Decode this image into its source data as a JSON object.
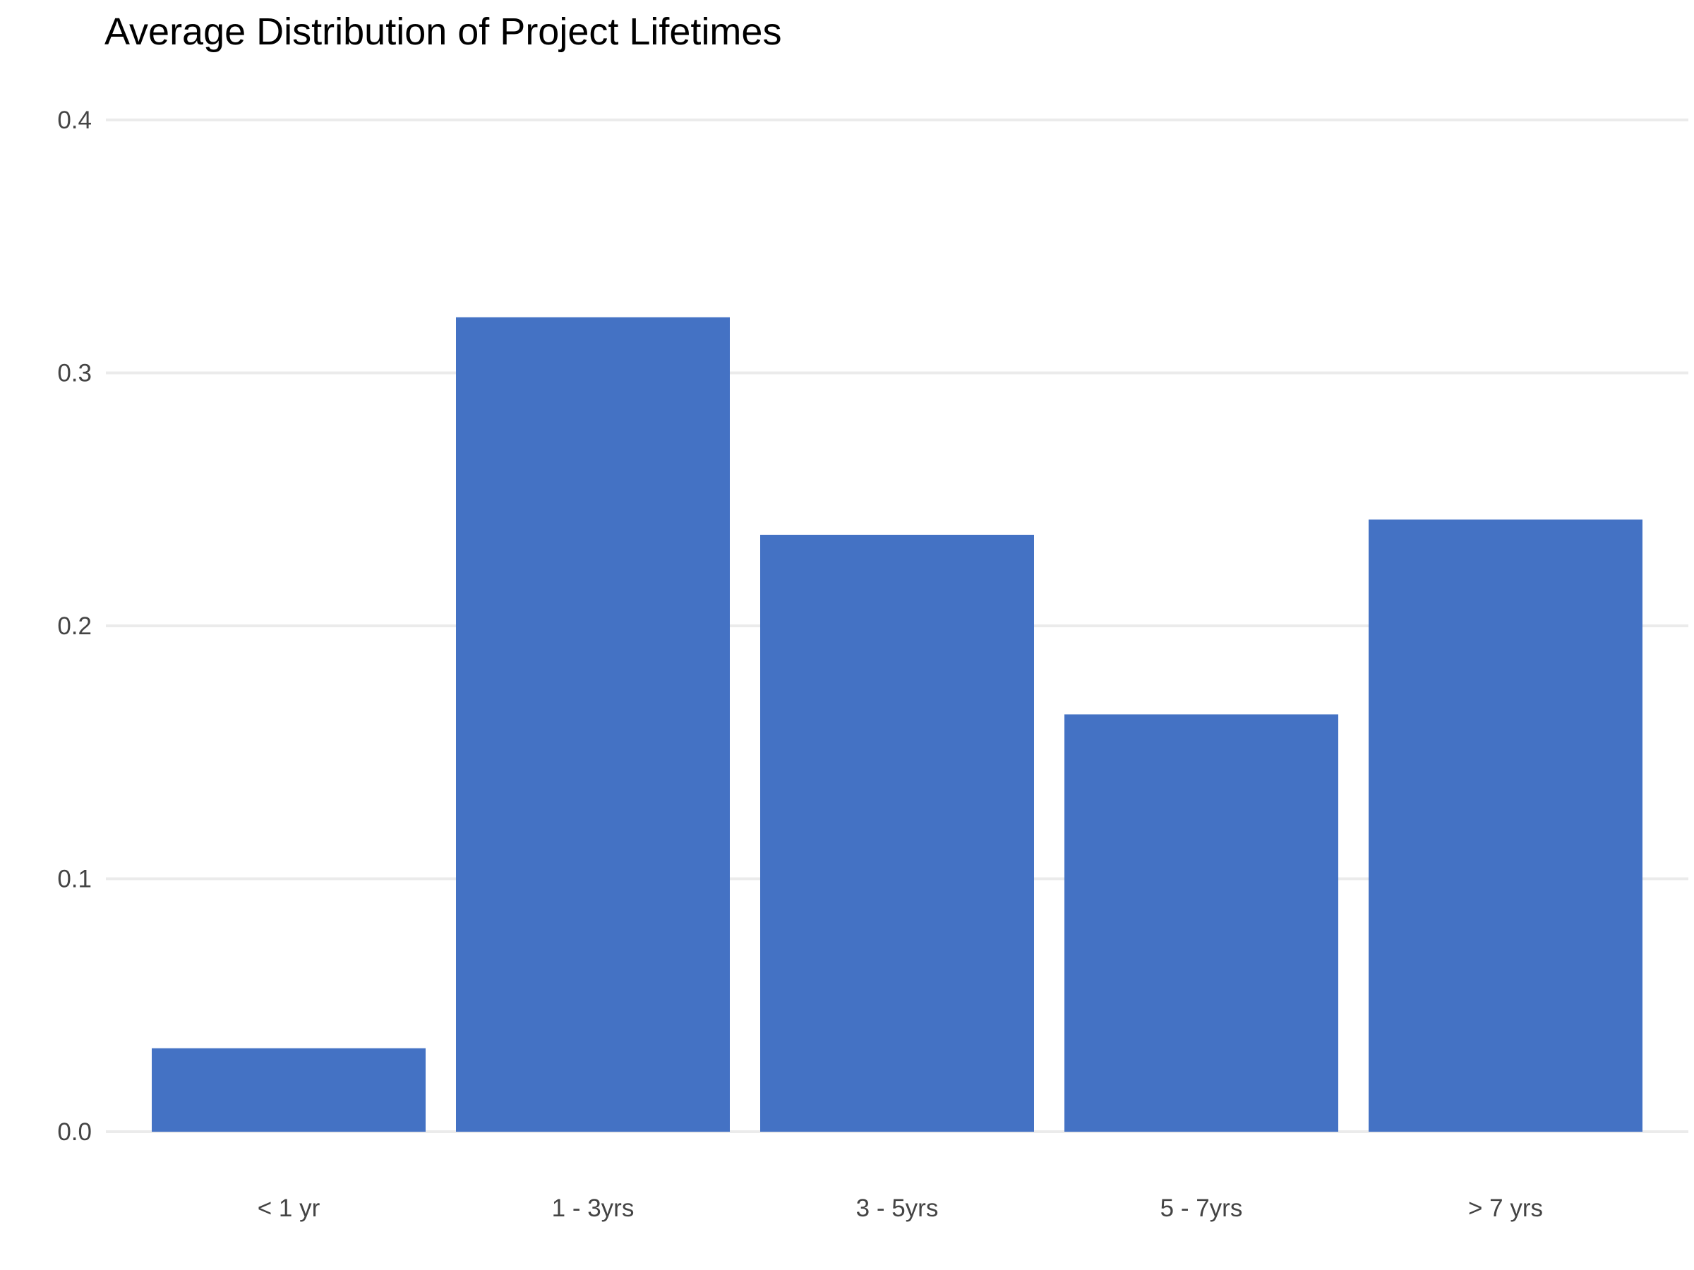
{
  "chart_data": {
    "type": "bar",
    "title": "Average Distribution of Project Lifetimes",
    "xlabel": "",
    "ylabel": "",
    "categories": [
      "< 1 yr",
      "1 - 3yrs",
      "3 - 5yrs",
      "5 - 7yrs",
      "> 7 yrs"
    ],
    "values": [
      0.033,
      0.322,
      0.236,
      0.165,
      0.242
    ],
    "ylim": [
      0,
      0.4
    ],
    "yticks": [
      0.0,
      0.1,
      0.2,
      0.3,
      0.4
    ],
    "ytick_labels": [
      "0.0",
      "0.1",
      "0.2",
      "0.3",
      "0.4"
    ],
    "grid": true,
    "legend": "none",
    "colors": {
      "bar": "#4472C4",
      "grid": "#EBEBEB",
      "tick_text": "#444444",
      "title_text": "#000000"
    }
  }
}
